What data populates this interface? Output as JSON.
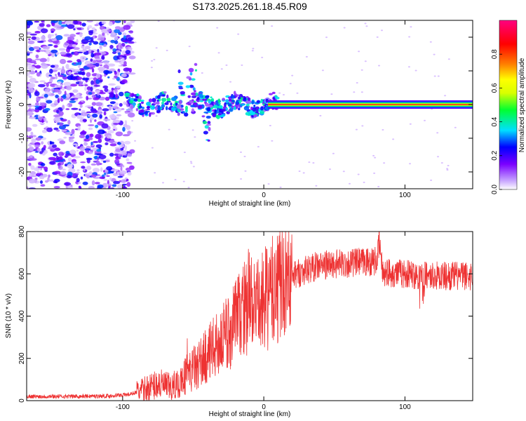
{
  "figure_title": "S173.2025.261.18.45.R09",
  "chart_data": [
    {
      "type": "heatmap",
      "xlabel": "Height of straight line (km)",
      "ylabel": "Frequency (Hz)",
      "xlim": [
        -168,
        148
      ],
      "ylim": [
        -25,
        25
      ],
      "xticks": [
        -100,
        0,
        100
      ],
      "xtick_labels": [
        "-100",
        "0",
        "100"
      ],
      "yticks": [
        -20,
        -10,
        0,
        10,
        20
      ],
      "ytick_labels": [
        "-20",
        "-10",
        "0",
        "10",
        "20"
      ],
      "colorbar": {
        "label": "Normalized spectral amplitude",
        "range": [
          0,
          1
        ],
        "ticks": [
          0.0,
          0.2,
          0.4,
          0.6,
          0.8
        ],
        "tick_labels": [
          "0.0",
          "0.2",
          "0.4",
          "0.6",
          "0.8"
        ],
        "colors": [
          "#ffffff",
          "#c9a8ff",
          "#7a00ff",
          "#0000ff",
          "#00e0ff",
          "#00ff30",
          "#d8ff00",
          "#ffff00",
          "#ff8000",
          "#ff0000",
          "#ff0080"
        ],
        "stops": [
          0,
          0.05,
          0.15,
          0.25,
          0.35,
          0.47,
          0.57,
          0.65,
          0.74,
          0.86,
          1.0
        ]
      },
      "regions": [
        {
          "name": "noise",
          "x": [
            -168,
            -93
          ],
          "y": [
            -25,
            25
          ],
          "amplitude": [
            0.02,
            0.3
          ]
        },
        {
          "name": "transition",
          "x": [
            -97,
            10
          ],
          "center_freq": 0,
          "amplitude": [
            0.1,
            0.5
          ]
        },
        {
          "name": "tone",
          "x": [
            3,
            148
          ],
          "freq": 0,
          "amplitude": 0.95
        }
      ]
    },
    {
      "type": "line",
      "xlabel": "Height of straight line (km)",
      "ylabel": "SNR (10 * v/v)",
      "xlim": [
        -168,
        148
      ],
      "ylim": [
        0,
        800
      ],
      "xticks": [
        -100,
        0,
        100
      ],
      "xtick_labels": [
        "-100",
        "0",
        "100"
      ],
      "yticks": [
        0,
        200,
        400,
        600,
        800
      ],
      "ytick_labels": [
        "0",
        "200",
        "400",
        "600",
        "800"
      ],
      "series": [
        {
          "name": "SNR",
          "color": "#ee3333",
          "x": [
            -168,
            -140,
            -110,
            -95,
            -85,
            -75,
            -65,
            -55,
            -45,
            -35,
            -25,
            -15,
            -10,
            -5,
            0,
            10,
            20,
            30,
            40,
            60,
            80,
            82,
            84,
            100,
            120,
            148
          ],
          "values": [
            20,
            20,
            22,
            30,
            50,
            80,
            60,
            120,
            180,
            250,
            320,
            430,
            480,
            430,
            470,
            540,
            590,
            620,
            640,
            650,
            660,
            750,
            610,
            600,
            590,
            590
          ]
        }
      ]
    }
  ]
}
